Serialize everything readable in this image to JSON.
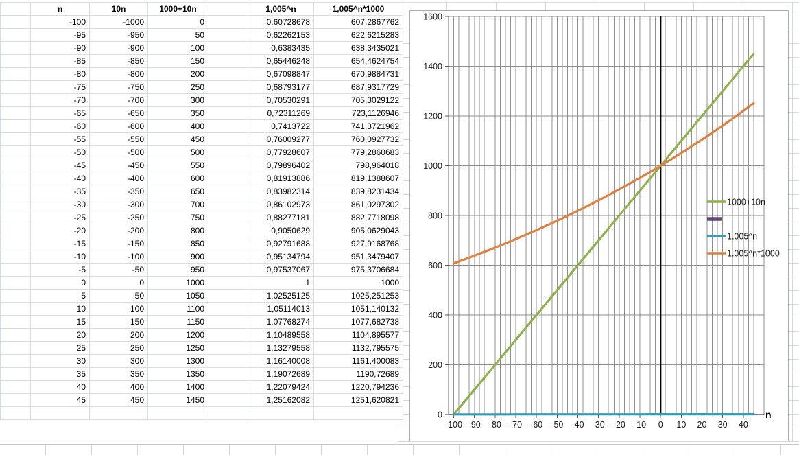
{
  "sheet": {
    "gridline_color": "#d5dbe7",
    "table": {
      "headers": [
        "n",
        "10n",
        "1000+10n",
        "",
        "1,005^n",
        "1,005^n*1000"
      ],
      "rows": [
        [
          "-100",
          "-1000",
          "0",
          "0,60728678",
          "607,2867762"
        ],
        [
          "-95",
          "-950",
          "50",
          "0,62262153",
          "622,6215283"
        ],
        [
          "-90",
          "-900",
          "100",
          "0,6383435",
          "638,3435021"
        ],
        [
          "-85",
          "-850",
          "150",
          "0,65446248",
          "654,4624754"
        ],
        [
          "-80",
          "-800",
          "200",
          "0,67098847",
          "670,9884731"
        ],
        [
          "-75",
          "-750",
          "250",
          "0,68793177",
          "687,9317729"
        ],
        [
          "-70",
          "-700",
          "300",
          "0,70530291",
          "705,3029122"
        ],
        [
          "-65",
          "-650",
          "350",
          "0,72311269",
          "723,1126946"
        ],
        [
          "-60",
          "-600",
          "400",
          "0,7413722",
          "741,3721962"
        ],
        [
          "-55",
          "-550",
          "450",
          "0,76009277",
          "760,0927732"
        ],
        [
          "-50",
          "-500",
          "500",
          "0,77928607",
          "779,2860683"
        ],
        [
          "-45",
          "-450",
          "550",
          "0,79896402",
          "798,964018"
        ],
        [
          "-40",
          "-400",
          "600",
          "0,81913886",
          "819,1388607"
        ],
        [
          "-35",
          "-350",
          "650",
          "0,83982314",
          "839,8231434"
        ],
        [
          "-30",
          "-300",
          "700",
          "0,86102973",
          "861,0297302"
        ],
        [
          "-25",
          "-250",
          "750",
          "0,88277181",
          "882,7718098"
        ],
        [
          "-20",
          "-200",
          "800",
          "0,9050629",
          "905,0629043"
        ],
        [
          "-15",
          "-150",
          "850",
          "0,92791688",
          "927,9168768"
        ],
        [
          "-10",
          "-100",
          "900",
          "0,95134794",
          "951,3479407"
        ],
        [
          "-5",
          "-50",
          "950",
          "0,97537067",
          "975,3706684"
        ],
        [
          "0",
          "0",
          "1000",
          "1",
          "1000"
        ],
        [
          "5",
          "50",
          "1050",
          "1,02525125",
          "1025,251253"
        ],
        [
          "10",
          "100",
          "1100",
          "1,05114013",
          "1051,140132"
        ],
        [
          "15",
          "150",
          "1150",
          "1,07768274",
          "1077,682738"
        ],
        [
          "20",
          "200",
          "1200",
          "1,10489558",
          "1104,895577"
        ],
        [
          "25",
          "250",
          "1250",
          "1,13279558",
          "1132,795575"
        ],
        [
          "30",
          "300",
          "1300",
          "1,16140008",
          "1161,400083"
        ],
        [
          "35",
          "350",
          "1350",
          "1,19072689",
          "1190,72689"
        ],
        [
          "40",
          "400",
          "1400",
          "1,22079424",
          "1220,794236"
        ],
        [
          "45",
          "450",
          "1450",
          "1,25162082",
          "1251,620821"
        ]
      ]
    }
  },
  "chart_data": {
    "type": "line",
    "title": "",
    "xlabel": "n",
    "ylabel": "",
    "x": [
      -100,
      -95,
      -90,
      -85,
      -80,
      -75,
      -70,
      -65,
      -60,
      -55,
      -50,
      -45,
      -40,
      -35,
      -30,
      -25,
      -20,
      -15,
      -10,
      -5,
      0,
      5,
      10,
      15,
      20,
      25,
      30,
      35,
      40,
      45
    ],
    "series": [
      {
        "name": "1000+10n",
        "color": "#8FAF4C",
        "values": [
          0,
          50,
          100,
          150,
          200,
          250,
          300,
          350,
          400,
          450,
          500,
          550,
          600,
          650,
          700,
          750,
          800,
          850,
          900,
          950,
          1000,
          1050,
          1100,
          1150,
          1200,
          1250,
          1300,
          1350,
          1400,
          1450
        ]
      },
      {
        "name": "",
        "color": "#604A7B",
        "values": []
      },
      {
        "name": "1,005^n",
        "color": "#3D99B4",
        "values": [
          0.60728678,
          0.62262153,
          0.6383435,
          0.65446248,
          0.67098847,
          0.68793177,
          0.70530291,
          0.72311269,
          0.7413722,
          0.76009277,
          0.77928607,
          0.79896402,
          0.81913886,
          0.83982314,
          0.86102973,
          0.88277181,
          0.9050629,
          0.92791688,
          0.95134794,
          0.97537067,
          1,
          1.02525125,
          1.05114013,
          1.07768274,
          1.10489558,
          1.13279558,
          1.16140008,
          1.19072689,
          1.22079424,
          1.25162082
        ]
      },
      {
        "name": "1,005^n*1000",
        "color": "#DB8142",
        "values": [
          607.2867762,
          622.6215283,
          638.3435021,
          654.4624754,
          670.9884731,
          687.9317729,
          705.3029122,
          723.1126946,
          741.3721962,
          760.0927732,
          779.2860683,
          798.964018,
          819.1388607,
          839.8231434,
          861.0297302,
          882.7718098,
          905.0629043,
          927.9168768,
          951.3479407,
          975.3706684,
          1000,
          1025.251253,
          1051.140132,
          1077.682738,
          1104.895577,
          1132.795575,
          1161.400083,
          1190.72689,
          1220.794236,
          1251.620821
        ]
      }
    ],
    "xlim": [
      -102.5,
      50
    ],
    "ylim": [
      0,
      1600
    ],
    "x_ticks": [
      -100,
      -90,
      -80,
      -70,
      -60,
      -50,
      -40,
      -30,
      -20,
      -10,
      0,
      10,
      20,
      30,
      40
    ],
    "y_ticks": [
      0,
      200,
      400,
      600,
      800,
      1000,
      1200,
      1400,
      1600
    ],
    "x_minor_step": 2.5,
    "zero_line_x": 0,
    "grid": true,
    "grid_color": "#8F8F8F",
    "axis_color": "#000000",
    "tick_label_color": "#1a1a1a",
    "legend_position": "right-middle"
  }
}
